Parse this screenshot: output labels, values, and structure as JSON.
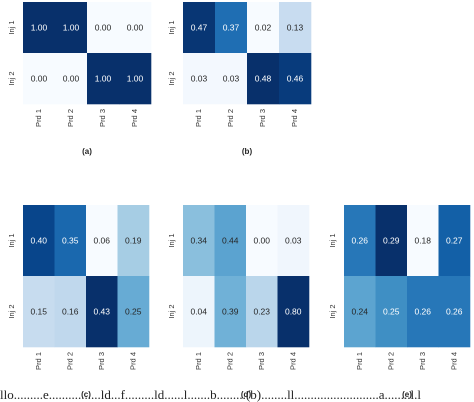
{
  "chart_data": [
    {
      "type": "heatmap",
      "panel_label": "(a)",
      "rows": [
        "Inj 1",
        "Inj 2"
      ],
      "cols": [
        "Prd 1",
        "Prd 2",
        "Prd 3",
        "Prd 4"
      ],
      "values": [
        [
          1.0,
          1.0,
          0.0,
          0.0
        ],
        [
          0.0,
          0.0,
          1.0,
          1.0
        ]
      ],
      "colormap": "Blues"
    },
    {
      "type": "heatmap",
      "panel_label": "(b)",
      "rows": [
        "Inj 1",
        "Inj 2"
      ],
      "cols": [
        "Prd 1",
        "Prd 2",
        "Prd 3",
        "Prd 4"
      ],
      "values": [
        [
          0.47,
          0.37,
          0.02,
          0.13
        ],
        [
          0.03,
          0.03,
          0.48,
          0.46
        ]
      ],
      "colormap": "Blues"
    },
    {
      "type": "heatmap",
      "panel_label": "(c)",
      "rows": [
        "Inj 1",
        "Inj 2"
      ],
      "cols": [
        "Prd 1",
        "Prd 2",
        "Prd 3",
        "Prd 4"
      ],
      "values": [
        [
          0.4,
          0.35,
          0.06,
          0.19
        ],
        [
          0.15,
          0.16,
          0.43,
          0.25
        ]
      ],
      "colormap": "Blues"
    },
    {
      "type": "heatmap",
      "panel_label": "(d)",
      "rows": [
        "Inj 1",
        "Inj 2"
      ],
      "cols": [
        "Prd 1",
        "Prd 2",
        "Prd 3",
        "Prd 4"
      ],
      "values": [
        [
          0.34,
          0.44,
          0.0,
          0.03
        ],
        [
          0.04,
          0.39,
          0.23,
          0.8
        ]
      ],
      "colormap": "Blues"
    },
    {
      "type": "heatmap",
      "panel_label": "(e)",
      "rows": [
        "Inj 1",
        "Inj 2"
      ],
      "cols": [
        "Prd 1",
        "Prd 2",
        "Prd 3",
        "Prd 4"
      ],
      "values": [
        [
          0.26,
          0.29,
          0.18,
          0.27
        ],
        [
          0.24,
          0.25,
          0.26,
          0.26
        ]
      ],
      "colormap": "Blues"
    }
  ],
  "footer_text": "llo.........e................ld...f.........ld......l.......b.........(b)........ll..........................a........l.l"
}
